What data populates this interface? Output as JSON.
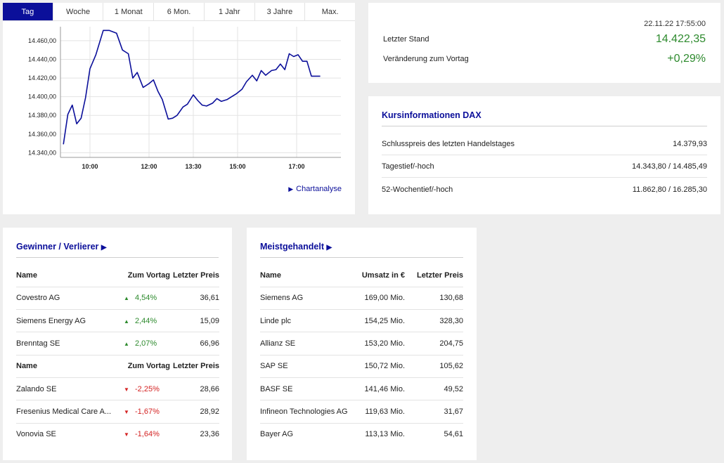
{
  "chart": {
    "tabs": [
      "Tag",
      "Woche",
      "1 Monat",
      "6 Mon.",
      "1 Jahr",
      "3 Jahre",
      "Max."
    ],
    "active_tab": "Tag",
    "link_label": "Chartanalyse"
  },
  "chart_data": {
    "type": "line",
    "title": "",
    "xlabel": "",
    "ylabel": "",
    "x_ticks": [
      "10:00",
      "12:00",
      "13:30",
      "15:00",
      "17:00"
    ],
    "x_tick_hours": [
      10.0,
      12.0,
      13.5,
      15.0,
      17.0
    ],
    "y_ticks": [
      "14.340,00",
      "14.360,00",
      "14.380,00",
      "14.400,00",
      "14.420,00",
      "14.440,00",
      "14.460,00"
    ],
    "ylim": [
      14335,
      14475
    ],
    "xlim": [
      9.0,
      18.5
    ],
    "grid": true,
    "series": [
      {
        "color": "#0b0f9a",
        "x": [
          9.1,
          9.25,
          9.4,
          9.55,
          9.7,
          9.85,
          10.0,
          10.2,
          10.45,
          10.65,
          10.9,
          11.1,
          11.3,
          11.45,
          11.6,
          11.8,
          12.0,
          12.15,
          12.3,
          12.45,
          12.65,
          12.8,
          12.95,
          13.15,
          13.3,
          13.5,
          13.65,
          13.8,
          13.95,
          14.15,
          14.3,
          14.45,
          14.65,
          14.8,
          14.95,
          15.15,
          15.3,
          15.5,
          15.65,
          15.8,
          15.95,
          16.15,
          16.3,
          16.45,
          16.6,
          16.75,
          16.9,
          17.05,
          17.2,
          17.35,
          17.5,
          17.65,
          17.8
        ],
        "values": [
          14349,
          14381,
          14391,
          14371,
          14377,
          14399,
          14430,
          14445,
          14471,
          14471,
          14468,
          14450,
          14446,
          14420,
          14426,
          14410,
          14414,
          14418,
          14406,
          14397,
          14376,
          14377,
          14380,
          14389,
          14392,
          14402,
          14396,
          14391,
          14390,
          14393,
          14398,
          14395,
          14397,
          14400,
          14403,
          14408,
          14416,
          14423,
          14417,
          14428,
          14423,
          14428,
          14429,
          14435,
          14429,
          14446,
          14443,
          14445,
          14438,
          14438,
          14422,
          14422,
          14422
        ]
      }
    ]
  },
  "quote": {
    "datetime": "22.11.22 17:55:00",
    "last_label": "Letzter Stand",
    "last_value": "14.422,35",
    "change_label": "Veränderung zum Vortag",
    "change_value": "+0,29%",
    "positive_color": "#2d8a2d"
  },
  "info": {
    "title": "Kursinformationen DAX",
    "rows": [
      {
        "label": "Schlusspreis des letzten Handelstages",
        "value": "14.379,93"
      },
      {
        "label": "Tagestief/-hoch",
        "value": "14.343,80 / 14.485,49"
      },
      {
        "label": "52-Wochentief/-hoch",
        "value": "11.862,80 / 16.285,30"
      }
    ]
  },
  "movers": {
    "title": "Gewinner / Verlierer",
    "headers": [
      "Name",
      "Zum Vortag",
      "Letzter Preis"
    ],
    "winners": [
      {
        "name": "Covestro AG",
        "change": "4,54%",
        "price": "36,61"
      },
      {
        "name": "Siemens Energy AG",
        "change": "2,44%",
        "price": "15,09"
      },
      {
        "name": "Brenntag SE",
        "change": "2,07%",
        "price": "66,96"
      }
    ],
    "losers": [
      {
        "name": "Zalando SE",
        "change": "-2,25%",
        "price": "28,66"
      },
      {
        "name": "Fresenius Medical Care A...",
        "change": "-1,67%",
        "price": "28,92"
      },
      {
        "name": "Vonovia SE",
        "change": "-1,64%",
        "price": "23,36"
      }
    ],
    "up_color": "#2d8a2d",
    "down_color": "#d42323"
  },
  "traded": {
    "title": "Meistgehandelt",
    "headers": [
      "Name",
      "Umsatz in €",
      "Letzter Preis"
    ],
    "rows": [
      {
        "name": "Siemens AG",
        "turnover": "169,00 Mio.",
        "price": "130,68"
      },
      {
        "name": "Linde plc",
        "turnover": "154,25 Mio.",
        "price": "328,30"
      },
      {
        "name": "Allianz SE",
        "turnover": "153,20 Mio.",
        "price": "204,75"
      },
      {
        "name": "SAP SE",
        "turnover": "150,72 Mio.",
        "price": "105,62"
      },
      {
        "name": "BASF SE",
        "turnover": "141,46 Mio.",
        "price": "49,52"
      },
      {
        "name": "Infineon Technologies AG",
        "turnover": "119,63 Mio.",
        "price": "31,67"
      },
      {
        "name": "Bayer AG",
        "turnover": "113,13 Mio.",
        "price": "54,61"
      }
    ]
  },
  "accent_color": "#0b0f9a"
}
